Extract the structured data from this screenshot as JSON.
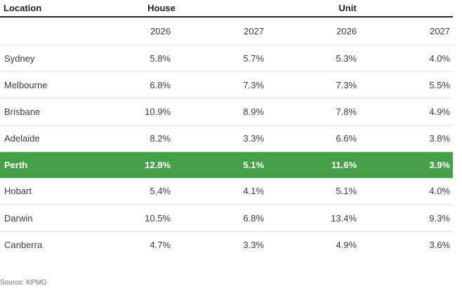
{
  "chart_data": {
    "type": "table",
    "columns": [
      "Location",
      "House 2026",
      "House 2027",
      "Unit 2026",
      "Unit 2027"
    ],
    "location_header": "Location",
    "column_groups": [
      {
        "label": "House",
        "span": 2
      },
      {
        "label": "Unit",
        "span": 2
      }
    ],
    "years": [
      "2026",
      "2027",
      "2026",
      "2027"
    ],
    "rows": [
      {
        "location": "Sydney",
        "values": [
          "5.8%",
          "5.7%",
          "5.3%",
          "4.0%"
        ],
        "highlight": false
      },
      {
        "location": "Melbourne",
        "values": [
          "6.8%",
          "7.3%",
          "7.3%",
          "5.5%"
        ],
        "highlight": false
      },
      {
        "location": "Brisbane",
        "values": [
          "10.9%",
          "8.9%",
          "7.8%",
          "4.9%"
        ],
        "highlight": false
      },
      {
        "location": "Adelaide",
        "values": [
          "8.2%",
          "3.3%",
          "6.6%",
          "3.8%"
        ],
        "highlight": false
      },
      {
        "location": "Perth",
        "values": [
          "12.8%",
          "5.1%",
          "11.6%",
          "3.9%"
        ],
        "highlight": true
      },
      {
        "location": "Hobart",
        "values": [
          "5.4%",
          "4.1%",
          "5.1%",
          "4.0%"
        ],
        "highlight": false
      },
      {
        "location": "Darwin",
        "values": [
          "10.5%",
          "6.8%",
          "13.4%",
          "9.3%"
        ],
        "highlight": false
      },
      {
        "location": "Canberra",
        "values": [
          "4.7%",
          "3.3%",
          "4.9%",
          "3.6%"
        ],
        "highlight": false
      }
    ],
    "source": "Source: KPMG",
    "layout": {
      "highlight_row": "Perth",
      "grid": "horizontal-dividers"
    }
  },
  "colors": {
    "highlight_green": "#45a148",
    "header_rule": "#26262c",
    "row_divider": "#e3e3e3",
    "body_text": "#3b3b42",
    "header_text": "#1e1e26",
    "source_text": "#6f6f74",
    "highlight_text": "#ffffff",
    "background": "#ffffff"
  }
}
